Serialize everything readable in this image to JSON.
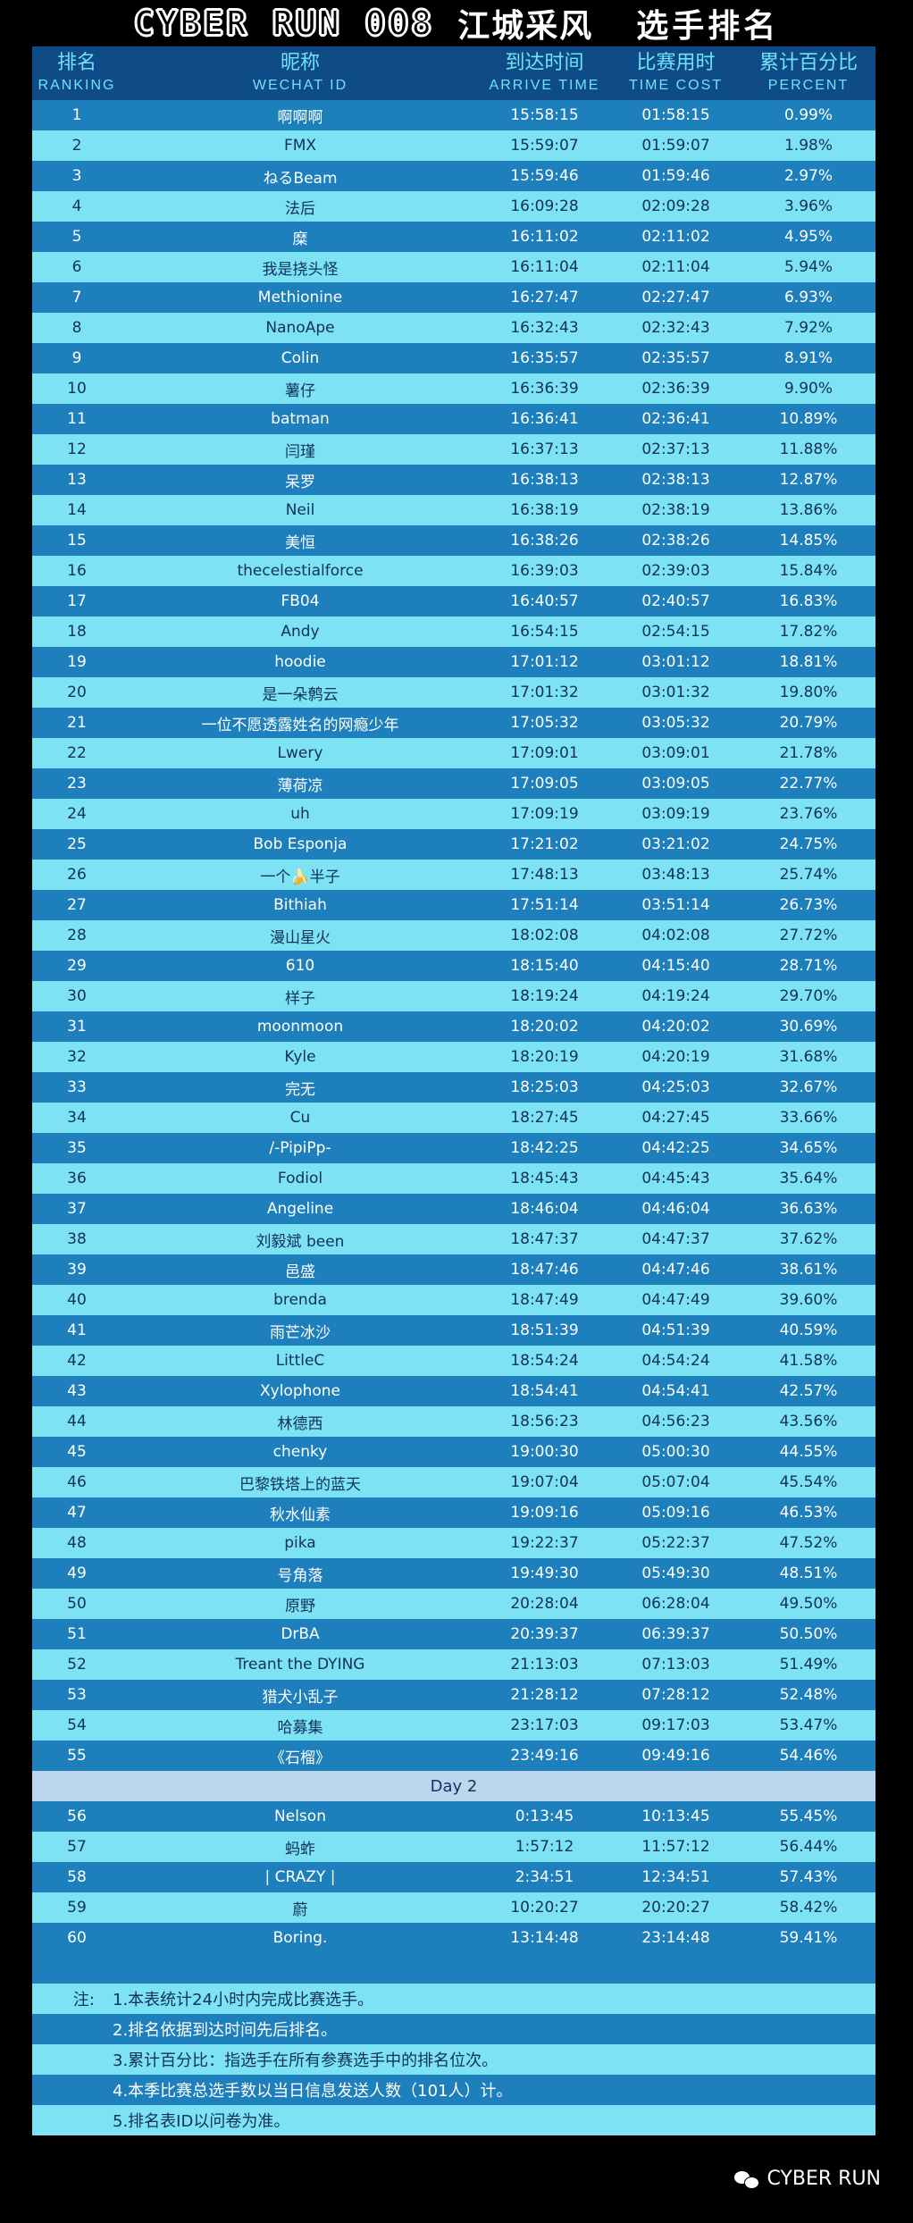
{
  "banner": {
    "en": "CYBER RUN 008",
    "cn": "江城采风",
    "cn2": "选手排名"
  },
  "header": {
    "rank_zh": "排名",
    "rank_en": "RANKING",
    "name_zh": "昵称",
    "name_en": "WECHAT ID",
    "arrive_zh": "到达时间",
    "arrive_en": "ARRIVE TIME",
    "cost_zh": "比赛用时",
    "cost_en": "TIME COST",
    "pct_zh": "累计百分比",
    "pct_en": "PERCENT"
  },
  "rows_day1": [
    [
      "1",
      "啊啊啊",
      "15:58:15",
      "01:58:15",
      "0.99%"
    ],
    [
      "2",
      "FMX",
      "15:59:07",
      "01:59:07",
      "1.98%"
    ],
    [
      "3",
      "ねるBeam",
      "15:59:46",
      "01:59:46",
      "2.97%"
    ],
    [
      "4",
      "法后",
      "16:09:28",
      "02:09:28",
      "3.96%"
    ],
    [
      "5",
      "糜",
      "16:11:02",
      "02:11:02",
      "4.95%"
    ],
    [
      "6",
      "我是挠头怪",
      "16:11:04",
      "02:11:04",
      "5.94%"
    ],
    [
      "7",
      "Methionine",
      "16:27:47",
      "02:27:47",
      "6.93%"
    ],
    [
      "8",
      "NanoApe",
      "16:32:43",
      "02:32:43",
      "7.92%"
    ],
    [
      "9",
      "Colin",
      "16:35:57",
      "02:35:57",
      "8.91%"
    ],
    [
      "10",
      "薯仔",
      "16:36:39",
      "02:36:39",
      "9.90%"
    ],
    [
      "11",
      "batman",
      "16:36:41",
      "02:36:41",
      "10.89%"
    ],
    [
      "12",
      "闫瑾",
      "16:37:13",
      "02:37:13",
      "11.88%"
    ],
    [
      "13",
      "呆罗",
      "16:38:13",
      "02:38:13",
      "12.87%"
    ],
    [
      "14",
      "Neil",
      "16:38:19",
      "02:38:19",
      "13.86%"
    ],
    [
      "15",
      "美恒",
      "16:38:26",
      "02:38:26",
      "14.85%"
    ],
    [
      "16",
      "thecelestialforce",
      "16:39:03",
      "02:39:03",
      "15.84%"
    ],
    [
      "17",
      "FB04",
      "16:40:57",
      "02:40:57",
      "16.83%"
    ],
    [
      "18",
      "Andy",
      "16:54:15",
      "02:54:15",
      "17.82%"
    ],
    [
      "19",
      "hoodie",
      "17:01:12",
      "03:01:12",
      "18.81%"
    ],
    [
      "20",
      "是一朵鹩云",
      "17:01:32",
      "03:01:32",
      "19.80%"
    ],
    [
      "21",
      "一位不愿透露姓名的网瘾少年",
      "17:05:32",
      "03:05:32",
      "20.79%"
    ],
    [
      "22",
      "Lwery",
      "17:09:01",
      "03:09:01",
      "21.78%"
    ],
    [
      "23",
      "薄荷凉",
      "17:09:05",
      "03:09:05",
      "22.77%"
    ],
    [
      "24",
      "uh",
      "17:09:19",
      "03:09:19",
      "23.76%"
    ],
    [
      "25",
      "Bob Esponja",
      "17:21:02",
      "03:21:02",
      "24.75%"
    ],
    [
      "26",
      "一个🍌半子",
      "17:48:13",
      "03:48:13",
      "25.74%"
    ],
    [
      "27",
      "Bithiah",
      "17:51:14",
      "03:51:14",
      "26.73%"
    ],
    [
      "28",
      "漫山星火",
      "18:02:08",
      "04:02:08",
      "27.72%"
    ],
    [
      "29",
      "610",
      "18:15:40",
      "04:15:40",
      "28.71%"
    ],
    [
      "30",
      "样子",
      "18:19:24",
      "04:19:24",
      "29.70%"
    ],
    [
      "31",
      "moonmoon",
      "18:20:02",
      "04:20:02",
      "30.69%"
    ],
    [
      "32",
      "Kyle",
      "18:20:19",
      "04:20:19",
      "31.68%"
    ],
    [
      "33",
      "完无",
      "18:25:03",
      "04:25:03",
      "32.67%"
    ],
    [
      "34",
      "Cu",
      "18:27:45",
      "04:27:45",
      "33.66%"
    ],
    [
      "35",
      "/-PipiPp-",
      "18:42:25",
      "04:42:25",
      "34.65%"
    ],
    [
      "36",
      "Fodiol",
      "18:45:43",
      "04:45:43",
      "35.64%"
    ],
    [
      "37",
      "Angeline",
      "18:46:04",
      "04:46:04",
      "36.63%"
    ],
    [
      "38",
      "刘毅斌 been",
      "18:47:37",
      "04:47:37",
      "37.62%"
    ],
    [
      "39",
      "邑盛",
      "18:47:46",
      "04:47:46",
      "38.61%"
    ],
    [
      "40",
      "brenda",
      "18:47:49",
      "04:47:49",
      "39.60%"
    ],
    [
      "41",
      "雨芒冰沙",
      "18:51:39",
      "04:51:39",
      "40.59%"
    ],
    [
      "42",
      "LittleC",
      "18:54:24",
      "04:54:24",
      "41.58%"
    ],
    [
      "43",
      "Xylophone",
      "18:54:41",
      "04:54:41",
      "42.57%"
    ],
    [
      "44",
      "林德西",
      "18:56:23",
      "04:56:23",
      "43.56%"
    ],
    [
      "45",
      "chenky",
      "19:00:30",
      "05:00:30",
      "44.55%"
    ],
    [
      "46",
      "巴黎铁塔上的蓝天",
      "19:07:04",
      "05:07:04",
      "45.54%"
    ],
    [
      "47",
      "秋水仙素",
      "19:09:16",
      "05:09:16",
      "46.53%"
    ],
    [
      "48",
      "pika",
      "19:22:37",
      "05:22:37",
      "47.52%"
    ],
    [
      "49",
      "号角落",
      "19:49:30",
      "05:49:30",
      "48.51%"
    ],
    [
      "50",
      "原野",
      "20:28:04",
      "06:28:04",
      "49.50%"
    ],
    [
      "51",
      "DrBA",
      "20:39:37",
      "06:39:37",
      "50.50%"
    ],
    [
      "52",
      "Treant the DYING",
      "21:13:03",
      "07:13:03",
      "51.49%"
    ],
    [
      "53",
      "猎犬小乱子",
      "21:28:12",
      "07:28:12",
      "52.48%"
    ],
    [
      "54",
      "哈募集",
      "23:17:03",
      "09:17:03",
      "53.47%"
    ],
    [
      "55",
      "《石榴》",
      "23:49:16",
      "09:49:16",
      "54.46%"
    ]
  ],
  "day2_label": "Day 2",
  "rows_day2": [
    [
      "56",
      "Nelson",
      "0:13:45",
      "10:13:45",
      "55.45%"
    ],
    [
      "57",
      "蚂蚱",
      "1:57:12",
      "11:57:12",
      "56.44%"
    ],
    [
      "58",
      "| CRAZY |",
      "2:34:51",
      "12:34:51",
      "57.43%"
    ],
    [
      "59",
      "蔚",
      "10:20:27",
      "20:20:27",
      "58.42%"
    ],
    [
      "60",
      "Boring.",
      "13:14:48",
      "23:14:48",
      "59.41%"
    ]
  ],
  "notes_label": "注:",
  "notes": [
    "1.本表统计24小时内完成比赛选手。",
    "2.排名依据到达时间先后排名。",
    "3.累计百分比：指选手在所有参赛选手中的排名位次。",
    "4.本季比赛总选手数以当日信息发送人数（101人）计。",
    "5.排名表ID以问卷为准。"
  ],
  "footer": {
    "brand": "CYBER RUN",
    "icon": "wechat-icon"
  }
}
